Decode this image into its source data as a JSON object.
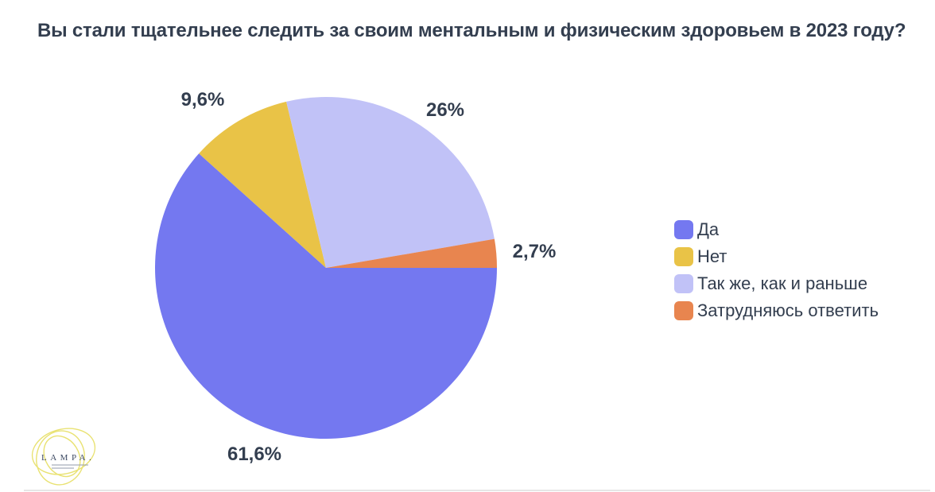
{
  "title": "Вы стали тщательнее следить за своим ментальным и физическим здоровьем в 2023 году?",
  "chart_data": {
    "type": "pie",
    "title": "Вы стали тщательнее следить за своим ментальным и физическим здоровьем в 2023 году?",
    "start_angle_deg": 0,
    "direction": "clockwise",
    "legend_position": "right",
    "slices": [
      {
        "label": "Да",
        "value": 61.6,
        "display": "61,6%",
        "color": "#7478F0"
      },
      {
        "label": "Нет",
        "value": 9.6,
        "display": "9,6%",
        "color": "#E9C347"
      },
      {
        "label": "Так же, как и раньше",
        "value": 26,
        "display": "26%",
        "color": "#C1C2F7"
      },
      {
        "label": "Затрудняюсь ответить",
        "value": 2.7,
        "display": "2,7%",
        "color": "#E8854F"
      }
    ]
  },
  "colors": {
    "background": "#FFFFFF",
    "text": "#333E4F",
    "logo_text": "#3D4A63",
    "logo_scribble": "#E9E272"
  },
  "logo": {
    "text": "LAMPA."
  }
}
